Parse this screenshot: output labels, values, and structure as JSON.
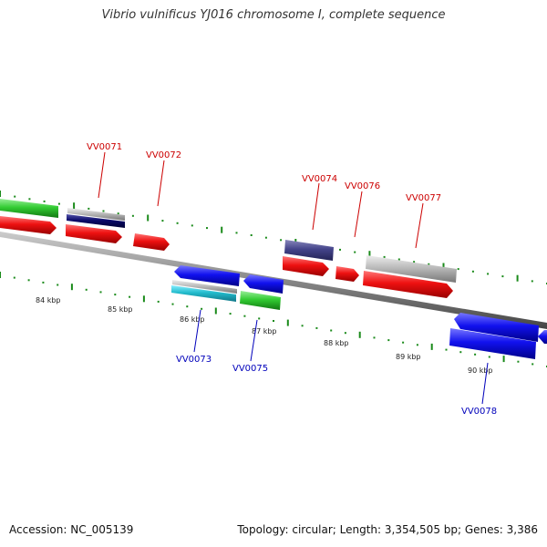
{
  "title": "Vibrio vulnificus YJ016 chromosome I, complete sequence",
  "footer": {
    "accession": "Accession: NC_005139",
    "summary": "Topology: circular; Length: 3,354,505 bp; Genes: 3,386"
  },
  "colors": {
    "backbone": "#888888",
    "tick": "#1a8a1a",
    "plus_label": "#cc0000",
    "minus_label": "#0000bb",
    "red": "#ee1111",
    "blue": "#1111ee",
    "green": "#33cc33",
    "gray": "#bbbbbb",
    "navy": "#0a0a6a",
    "slate": "#44448a",
    "cyan": "#22bbcc"
  },
  "scale_labels": [
    "84 kbp",
    "85 kbp",
    "86 kbp",
    "87 kbp",
    "88 kbp",
    "89 kbp",
    "90 kbp"
  ],
  "gene_labels_plus": [
    "VV0071",
    "VV0072",
    "VV0074",
    "VV0076",
    "VV0077"
  ],
  "gene_labels_minus": [
    "VV0073",
    "VV0075",
    "VV0078"
  ]
}
